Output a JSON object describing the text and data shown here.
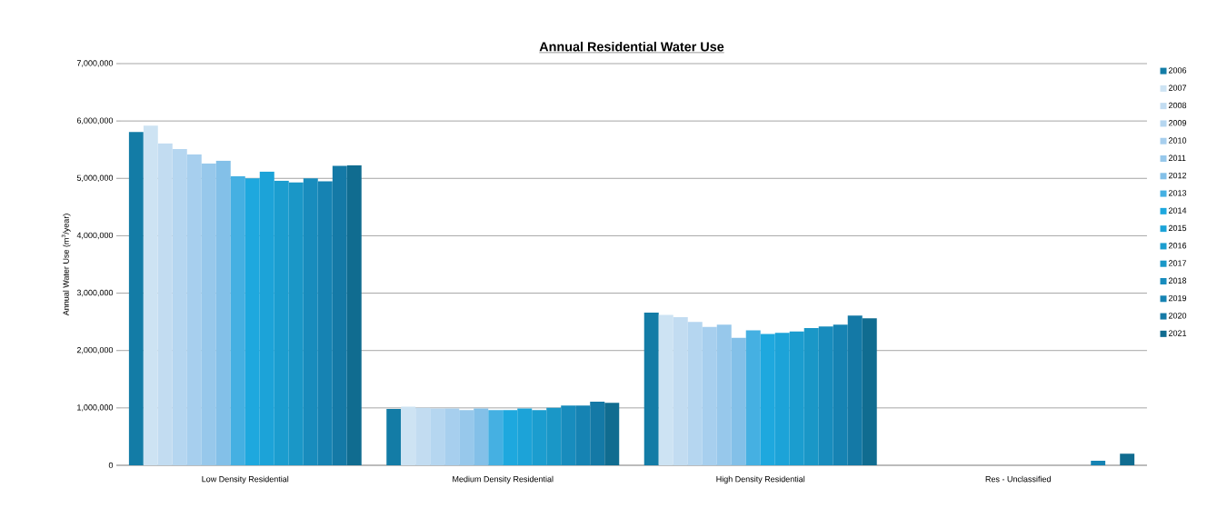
{
  "chart_data": {
    "type": "bar",
    "title": "Annual Residential Water Use",
    "ylabel": "Annual Water Use (m$^{3}$/year)",
    "categories": [
      "Low Density Residential",
      "Medium Density Residential",
      "High Density Residential",
      "Res - Unclassified"
    ],
    "series": [
      {
        "name": "2006",
        "color": "#137ca6",
        "values": [
          5810000,
          980000,
          2660000,
          0
        ]
      },
      {
        "name": "2007",
        "color": "#cde3f3",
        "values": [
          5920000,
          1020000,
          2620000,
          0
        ]
      },
      {
        "name": "2008",
        "color": "#c2dcf1",
        "values": [
          5610000,
          1000000,
          2580000,
          0
        ]
      },
      {
        "name": "2009",
        "color": "#b5d6f0",
        "values": [
          5510000,
          990000,
          2500000,
          0
        ]
      },
      {
        "name": "2010",
        "color": "#a7cfee",
        "values": [
          5420000,
          990000,
          2410000,
          0
        ]
      },
      {
        "name": "2011",
        "color": "#97c8eb",
        "values": [
          5260000,
          960000,
          2450000,
          0
        ]
      },
      {
        "name": "2012",
        "color": "#83c0e8",
        "values": [
          5310000,
          990000,
          2220000,
          0
        ]
      },
      {
        "name": "2013",
        "color": "#45b0e2",
        "values": [
          5040000,
          960000,
          2350000,
          0
        ]
      },
      {
        "name": "2014",
        "color": "#1ea8de",
        "values": [
          5000000,
          960000,
          2290000,
          0
        ]
      },
      {
        "name": "2015",
        "color": "#1ca3d8",
        "values": [
          5120000,
          990000,
          2310000,
          0
        ]
      },
      {
        "name": "2016",
        "color": "#1b9dcf",
        "values": [
          4960000,
          960000,
          2330000,
          0
        ]
      },
      {
        "name": "2017",
        "color": "#1a97c7",
        "values": [
          4930000,
          1000000,
          2390000,
          0
        ]
      },
      {
        "name": "2018",
        "color": "#188cbd",
        "values": [
          5000000,
          1040000,
          2420000,
          0
        ]
      },
      {
        "name": "2019",
        "color": "#1683b3",
        "values": [
          4950000,
          1040000,
          2450000,
          80000
        ]
      },
      {
        "name": "2020",
        "color": "#1479a6",
        "values": [
          5220000,
          1110000,
          2610000,
          0
        ]
      },
      {
        "name": "2021",
        "color": "#106c90",
        "values": [
          5230000,
          1090000,
          2560000,
          200000
        ]
      }
    ],
    "ylim": [
      0,
      7000000
    ],
    "yticks": [
      {
        "value": 0,
        "label": "0"
      },
      {
        "value": 1000000,
        "label": "1,000,000"
      },
      {
        "value": 2000000,
        "label": "2,000,000"
      },
      {
        "value": 3000000,
        "label": "3,000,000"
      },
      {
        "value": 4000000,
        "label": "4,000,000"
      },
      {
        "value": 5000000,
        "label": "5,000,000"
      },
      {
        "value": 6000000,
        "label": "6,000,000"
      },
      {
        "value": 7000000,
        "label": "7,000,000"
      }
    ],
    "grid": "y",
    "legend": "right"
  }
}
